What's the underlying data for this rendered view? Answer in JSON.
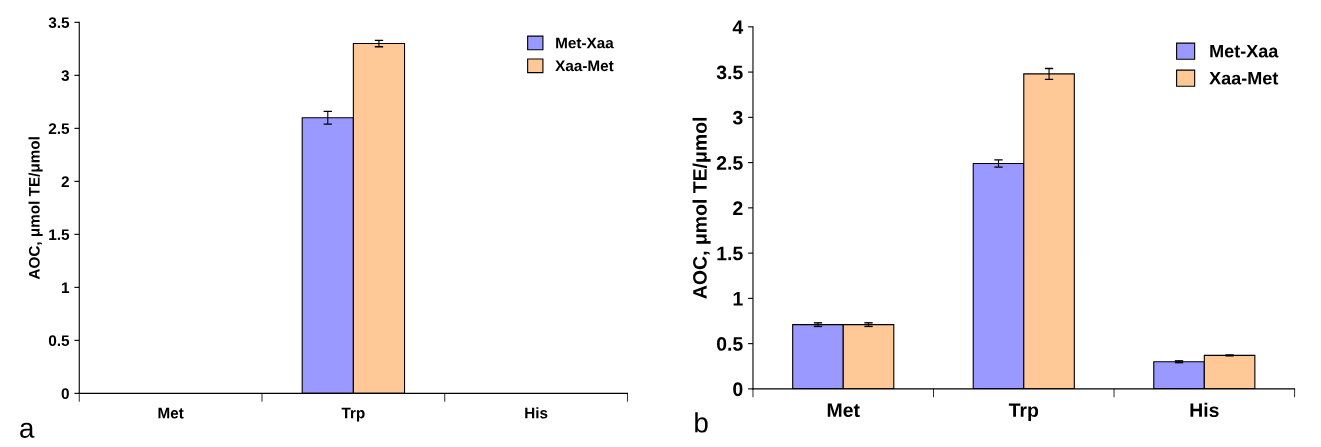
{
  "chart_data": [
    {
      "type": "bar",
      "categories": [
        "Met",
        "Trp",
        "His"
      ],
      "ylabel": "AOC, μmol TE/μmol",
      "ylim": [
        0,
        3.5
      ],
      "yticks": [
        0,
        0.5,
        1,
        1.5,
        2,
        2.5,
        3,
        3.5
      ],
      "legend": "top right",
      "annotations": [
        "a"
      ],
      "series": [
        {
          "name": "Met-Xaa",
          "color": "#9999ff",
          "values": [
            null,
            2.6,
            null
          ],
          "errors": [
            null,
            0.06,
            null
          ]
        },
        {
          "name": "Xaa-Met",
          "color": "#ffc896",
          "values": [
            null,
            3.3,
            null
          ],
          "errors": [
            null,
            0.03,
            null
          ]
        }
      ]
    },
    {
      "type": "bar",
      "categories": [
        "Met",
        "Trp",
        "His"
      ],
      "ylabel": "AOC, μmol TE/μmol",
      "ylim": [
        0,
        4
      ],
      "yticks": [
        0,
        0.5,
        1,
        1.5,
        2,
        2.5,
        3,
        3.5,
        4
      ],
      "legend": "top right",
      "annotations": [
        "b"
      ],
      "series": [
        {
          "name": "Met-Xaa",
          "color": "#9999ff",
          "values": [
            0.71,
            2.49,
            0.3
          ],
          "errors": [
            0.02,
            0.04,
            0.01
          ]
        },
        {
          "name": "Xaa-Met",
          "color": "#ffc896",
          "values": [
            0.71,
            3.48,
            0.37
          ],
          "errors": [
            0.02,
            0.06,
            0.005
          ]
        }
      ]
    }
  ]
}
